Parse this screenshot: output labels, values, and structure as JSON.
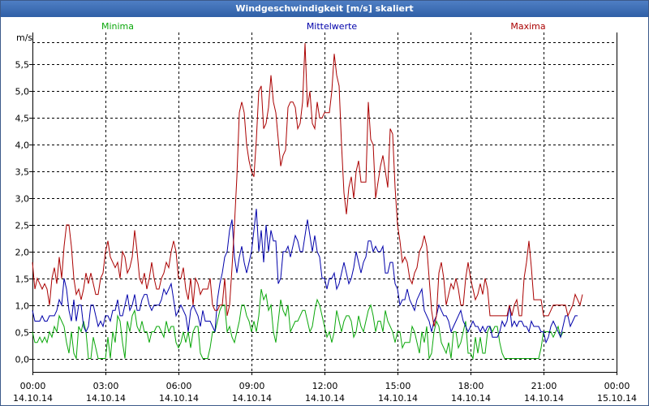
{
  "window": {
    "title": "Windgeschwindigkeit [m/s] skaliert"
  },
  "colors": {
    "minima": "#0aa70a",
    "mittel": "#0000aa",
    "maxima": "#aa0000",
    "grid": "#000000"
  },
  "chart_data": {
    "type": "line",
    "title": "Windgeschwindigkeit [m/s] skaliert",
    "ylabel": "m/s",
    "ylim": [
      -0.25,
      6.1
    ],
    "yticks": [
      0.0,
      0.5,
      1.0,
      1.5,
      2.0,
      2.5,
      3.0,
      3.5,
      4.0,
      4.5,
      5.0,
      5.5
    ],
    "ytick_labels": [
      "0,0",
      "0,5",
      "1,0",
      "1,5",
      "2,0",
      "2,5",
      "3,0",
      "3,5",
      "4,0",
      "4,5",
      "5,0",
      "5,5"
    ],
    "xlim": [
      0,
      24
    ],
    "xticks": [
      {
        "time": "00:00",
        "date": "14.10.14",
        "hour": 0
      },
      {
        "time": "03:00",
        "date": "14.10.14",
        "hour": 3
      },
      {
        "time": "06:00",
        "date": "14.10.14",
        "hour": 6
      },
      {
        "time": "09:00",
        "date": "14.10.14",
        "hour": 9
      },
      {
        "time": "12:00",
        "date": "14.10.14",
        "hour": 12
      },
      {
        "time": "15:00",
        "date": "14.10.14",
        "hour": 15
      },
      {
        "time": "18:00",
        "date": "14.10.14",
        "hour": 18
      },
      {
        "time": "21:00",
        "date": "14.10.14",
        "hour": 21
      },
      {
        "time": "00:00",
        "date": "15.10.14",
        "hour": 24
      }
    ],
    "x_step_hours": 0.1,
    "legend": [
      "Minima",
      "Mittelwerte",
      "Maxima"
    ],
    "series": [
      {
        "name": "Minima",
        "values": [
          0.5,
          0.3,
          0.3,
          0.4,
          0.3,
          0.4,
          0.3,
          0.5,
          0.4,
          0.6,
          0.5,
          0.8,
          0.7,
          0.6,
          0.3,
          0.1,
          0.5,
          0.1,
          0,
          0.6,
          0.5,
          0.7,
          0.5,
          0,
          0,
          0.4,
          0.2,
          0,
          0,
          0,
          0,
          0.4,
          0,
          0.5,
          0.3,
          0.8,
          0.7,
          0.3,
          0,
          0.7,
          0.5,
          0.8,
          0.9,
          0.6,
          0.5,
          0.7,
          0.5,
          0.5,
          0.3,
          0.5,
          0.5,
          0.6,
          0.6,
          0.5,
          0.4,
          0.7,
          0.5,
          0.6,
          0.6,
          0.3,
          0.2,
          0.3,
          0.5,
          0.3,
          0.5,
          0.2,
          0.5,
          0.6,
          0.6,
          0.1,
          0,
          0,
          0,
          0.2,
          0.5,
          0.5,
          0.7,
          0.9,
          1.0,
          1.0,
          0.5,
          0.6,
          0.4,
          0.3,
          0.5,
          0.7,
          1.0,
          1.0,
          0.8,
          0.7,
          0.5,
          0.7,
          0.5,
          0.8,
          1.3,
          1.1,
          1.2,
          0.9,
          1.0,
          0.5,
          0.3,
          0.7,
          1.1,
          0.9,
          0.8,
          1.0,
          0.5,
          0.6,
          0.7,
          0.7,
          0.8,
          0.9,
          0.9,
          0.7,
          0.5,
          0.6,
          0.9,
          1.1,
          1.0,
          0.8,
          0.6,
          0.4,
          0.5,
          0.3,
          0.5,
          0.9,
          0.7,
          0.5,
          0.7,
          0.8,
          0.8,
          0.7,
          0.4,
          0.5,
          0.8,
          0.6,
          0.5,
          0.7,
          0.9,
          1.0,
          0.8,
          0.5,
          0.7,
          0.7,
          0.5,
          0.9,
          0.7,
          0.6,
          0.5,
          0.3,
          0.5,
          0.5,
          0.2,
          0.3,
          0.3,
          0.3,
          0.6,
          0.5,
          0.3,
          0.1,
          0.5,
          0.3,
          0.6,
          0,
          0.1,
          0.5,
          0.7,
          0.6,
          0.3,
          0.2,
          0.1,
          0.3,
          0,
          0.5,
          0.5,
          0.2,
          0.3,
          0.5,
          0.7,
          0.1,
          0.1,
          0,
          0.4,
          0.1,
          0.4,
          0.1,
          0.1,
          0.5,
          0.6,
          0.5,
          0.6,
          0.6,
          0.3,
          0.1,
          0,
          0,
          0,
          0,
          0,
          0,
          0,
          0,
          0,
          0,
          0,
          0,
          0,
          0,
          0,
          0.2,
          0.5,
          0.5,
          0.5,
          0.5,
          0.4,
          0.5,
          0.6,
          0.4,
          0.5
        ]
      },
      {
        "name": "Mittelwerte",
        "values": [
          0.9,
          0.7,
          0.7,
          0.7,
          0.8,
          0.7,
          0.7,
          0.8,
          0.8,
          0.8,
          0.9,
          1.1,
          1.0,
          1.5,
          1.3,
          0.9,
          0.7,
          1.1,
          0.7,
          1.0,
          1.0,
          0.6,
          0.5,
          0.6,
          1.0,
          1.0,
          0.8,
          0.6,
          0.7,
          0.6,
          0.8,
          0.8,
          0.7,
          0.9,
          0.9,
          1.1,
          0.8,
          0.8,
          1.0,
          1.2,
          0.9,
          1.0,
          1.2,
          0.9,
          0.9,
          1.1,
          1.2,
          1.2,
          1.0,
          0.9,
          1.0,
          1.0,
          1.0,
          1.1,
          1.3,
          1.2,
          1.3,
          1.4,
          1.1,
          0.8,
          0.9,
          1.0,
          0.9,
          0.8,
          0.5,
          0.9,
          1.0,
          0.9,
          0.8,
          0.6,
          0.9,
          0.7,
          0.7,
          0.7,
          0.6,
          0.5,
          1.1,
          1.4,
          1.6,
          1.9,
          2.0,
          2.4,
          2.6,
          1.9,
          1.6,
          1.9,
          2.1,
          1.8,
          1.6,
          1.8,
          2.0,
          2.4,
          2.8,
          2.0,
          2.4,
          1.8,
          2.5,
          2.0,
          2.4,
          2.2,
          2.2,
          1.4,
          1.5,
          2.0,
          2.0,
          2.1,
          1.9,
          2.1,
          2.3,
          2.2,
          2.0,
          2.0,
          2.3,
          2.6,
          2.3,
          2.0,
          2.3,
          2.0,
          1.9,
          1.5,
          1.5,
          1.3,
          1.5,
          1.5,
          1.6,
          1.3,
          1.4,
          1.6,
          1.8,
          1.6,
          1.4,
          1.5,
          1.7,
          2.0,
          1.8,
          1.6,
          1.8,
          1.9,
          2.2,
          2.2,
          2.0,
          2.1,
          2.0,
          2.0,
          2.1,
          1.6,
          1.6,
          1.8,
          1.8,
          1.4,
          1.3,
          1.0,
          1.1,
          1.1,
          1.3,
          1.1,
          1.0,
          0.9,
          1.1,
          1.2,
          1.3,
          0.9,
          0.8,
          0.7,
          0.5,
          0.7,
          0.8,
          1.0,
          0.9,
          0.8,
          0.8,
          0.7,
          0.5,
          0.6,
          0.7,
          0.8,
          0.9,
          0.7,
          0.6,
          0.5,
          0.6,
          0.7,
          0.6,
          0.6,
          0.5,
          0.6,
          0.5,
          0.6,
          0.6,
          0.4,
          0.4,
          0.4,
          0.5,
          0.7,
          0.6,
          0.7,
          1.0,
          0.6,
          0.7,
          0.6,
          0.7,
          0.7,
          0.6,
          0.6,
          0.5,
          0.7,
          0.6,
          0.6,
          0.6,
          0.5,
          0.5,
          0.3,
          0.4,
          0.6,
          0.7,
          0.6,
          0.5,
          0.4,
          0.6,
          0.8,
          0.8,
          0.6,
          0.7,
          0.8,
          0.8
        ]
      },
      {
        "name": "Maxima",
        "values": [
          1.8,
          1.3,
          1.5,
          1.4,
          1.3,
          1.4,
          1.3,
          1.0,
          1.5,
          1.7,
          1.4,
          1.9,
          1.5,
          2.1,
          2.5,
          2.5,
          2.1,
          1.5,
          1.2,
          1.3,
          1.1,
          1.3,
          1.6,
          1.4,
          1.6,
          1.4,
          1.2,
          1.2,
          1.5,
          1.6,
          2.0,
          2.2,
          1.9,
          1.8,
          1.7,
          1.8,
          1.5,
          2.0,
          1.9,
          1.6,
          1.7,
          1.9,
          2.4,
          2.0,
          1.5,
          1.4,
          1.6,
          1.3,
          1.5,
          1.8,
          1.5,
          1.3,
          1.3,
          1.5,
          1.6,
          1.8,
          1.7,
          2.0,
          2.2,
          2.0,
          1.5,
          1.5,
          1.7,
          1.3,
          1.1,
          1.5,
          1.0,
          1.5,
          1.4,
          1.2,
          1.3,
          1.3,
          1.3,
          1.5,
          1.0,
          0.9,
          0.9,
          1.0,
          1.0,
          1.5,
          0.8,
          1.0,
          1.7,
          2.5,
          3.4,
          4.6,
          4.8,
          4.6,
          4.0,
          3.7,
          3.5,
          3.4,
          4.1,
          5.0,
          5.1,
          4.3,
          4.4,
          4.7,
          5.3,
          4.8,
          4.6,
          4.1,
          3.6,
          3.8,
          3.9,
          4.7,
          4.8,
          4.8,
          4.7,
          4.3,
          4.4,
          4.8,
          5.9,
          4.7,
          5.0,
          4.4,
          4.3,
          4.8,
          4.5,
          4.5,
          4.6,
          4.6,
          4.6,
          5.0,
          5.7,
          5.3,
          5.1,
          4.0,
          3.1,
          2.7,
          3.2,
          3.4,
          3.0,
          3.5,
          3.7,
          3.3,
          3.3,
          3.3,
          4.8,
          4.1,
          4.0,
          3.0,
          3.3,
          3.6,
          3.8,
          3.5,
          3.2,
          4.3,
          4.2,
          3.2,
          2.5,
          2.2,
          1.8,
          1.9,
          1.8,
          1.5,
          1.4,
          1.6,
          1.7,
          2.0,
          2.1,
          2.3,
          2.1,
          1.5,
          0.9,
          0.6,
          0.8,
          1.6,
          1.8,
          1.5,
          1.0,
          1.2,
          1.4,
          1.3,
          1.5,
          1.3,
          1.0,
          1.0,
          1.5,
          1.8,
          1.5,
          1.3,
          1.1,
          1.2,
          1.4,
          1.2,
          1.5,
          1.3,
          0.8,
          0.8,
          0.8,
          0.8,
          0.8,
          0.8,
          0.8,
          0.8,
          1.0,
          0.8,
          1.0,
          1.1,
          0.8,
          0.8,
          1.5,
          1.8,
          2.2,
          1.7,
          1.1,
          1.1,
          1.1,
          1.1,
          0.8,
          0.8,
          0.8,
          0.9,
          1.0,
          1.0,
          1.0,
          1.0,
          1.0,
          1.0,
          0.8,
          0.9,
          1.0,
          1.2,
          1.1,
          1.0,
          1.2
        ]
      }
    ]
  }
}
